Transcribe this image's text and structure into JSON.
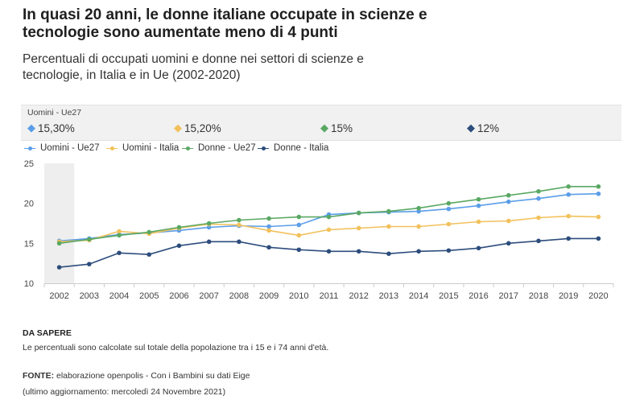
{
  "title": "In quasi 20 anni, le donne italiane occupate in scienze e tecnologie sono aumentate meno di 4 punti",
  "subtitle": "Percentuali di occupati uomini e donne nei settori di scienze e tecnologie, in Italia e in Ue (2002-2020)",
  "tooltip": {
    "title": "Uomini - Ue27",
    "items": [
      {
        "marker": "◆",
        "value": "15,30%",
        "color": "#5b9ee8"
      },
      {
        "marker": "◆",
        "value": "15,20%",
        "color": "#f2c15c"
      },
      {
        "marker": "◆",
        "value": "15%",
        "color": "#5aa863"
      },
      {
        "marker": "◆",
        "value": "12%",
        "color": "#2d4d7c"
      }
    ]
  },
  "colors": {
    "uomini_ue": "#5b9ee8",
    "uomini_it": "#f2c15c",
    "donne_ue": "#5aa863",
    "donne_it": "#2d4d7c"
  },
  "chart_data": {
    "type": "line",
    "x": [
      "2002",
      "2003",
      "2004",
      "2005",
      "2006",
      "2007",
      "2008",
      "2009",
      "2010",
      "2011",
      "2012",
      "2013",
      "2014",
      "2015",
      "2016",
      "2017",
      "2018",
      "2019",
      "2020"
    ],
    "ylim": [
      10,
      25
    ],
    "yticks": [
      "10",
      "15",
      "20",
      "25"
    ],
    "highlight": "2002",
    "legend_position": "top-left",
    "series": [
      {
        "name": "Uomini - Ue27",
        "color": "#5b9ee8",
        "values": [
          15.3,
          15.6,
          16.1,
          16.3,
          16.6,
          17.0,
          17.2,
          17.1,
          17.3,
          18.6,
          18.8,
          18.9,
          19.0,
          19.3,
          19.7,
          20.2,
          20.6,
          21.1,
          21.2
        ]
      },
      {
        "name": "Uomini - Italia",
        "color": "#f2c15c",
        "values": [
          15.2,
          15.4,
          16.5,
          16.2,
          16.9,
          17.4,
          17.3,
          16.6,
          16.0,
          16.7,
          16.9,
          17.1,
          17.1,
          17.4,
          17.7,
          17.8,
          18.2,
          18.4,
          18.3
        ]
      },
      {
        "name": "Donne - Ue27",
        "color": "#5aa863",
        "values": [
          15.0,
          15.5,
          16.0,
          16.4,
          17.0,
          17.5,
          17.9,
          18.1,
          18.3,
          18.3,
          18.8,
          19.0,
          19.4,
          20.0,
          20.5,
          21.0,
          21.5,
          22.1,
          22.1
        ]
      },
      {
        "name": "Donne - Italia",
        "color": "#2d4d7c",
        "values": [
          12.0,
          12.4,
          13.8,
          13.6,
          14.7,
          15.2,
          15.2,
          14.5,
          14.2,
          14.0,
          14.0,
          13.7,
          14.0,
          14.1,
          14.4,
          15.0,
          15.3,
          15.6,
          15.6
        ]
      }
    ]
  },
  "notes": {
    "heading": "DA SAPERE",
    "text": "Le percentuali sono calcolate sul totale della popolazione tra i 15 e i 74 anni d'età."
  },
  "source": {
    "label": "FONTE:",
    "text": " elaborazione openpolis - Con i Bambini su dati Eige",
    "updated": "(ultimo aggiornamento: mercoledì 24 Novembre 2021)"
  }
}
